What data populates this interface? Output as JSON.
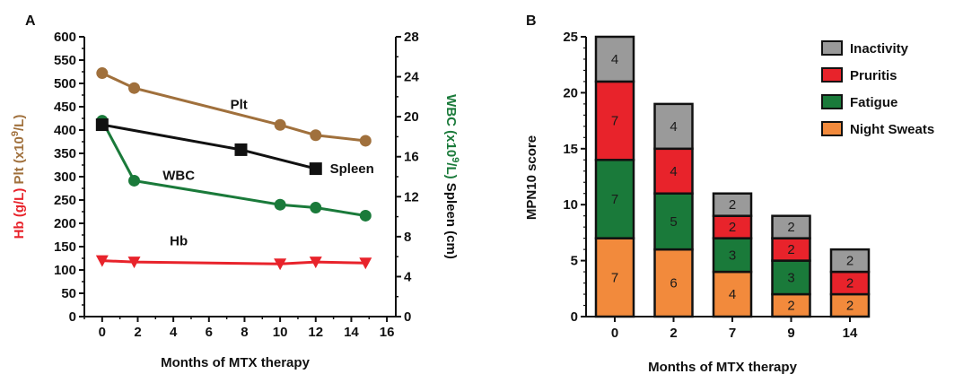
{
  "chart_data": [
    {
      "panel": "A",
      "type": "line",
      "xlabel": "Months of MTX therapy",
      "xlim": [
        -1,
        16.5
      ],
      "xticks": [
        0,
        2,
        4,
        6,
        8,
        10,
        12,
        14,
        16
      ],
      "y_left": {
        "label_parts": [
          "Hb (g/L)",
          " Plt (x10",
          "9",
          "/L)"
        ],
        "label_colors": [
          "#e8232b",
          "#a0703c",
          "#a0703c",
          "#a0703c"
        ],
        "lim": [
          0,
          600
        ],
        "ticks": [
          0,
          50,
          100,
          150,
          200,
          250,
          300,
          350,
          400,
          450,
          500,
          550,
          600
        ]
      },
      "y_right": {
        "label_parts": [
          "Spleen (cm)",
          " WBC (x10",
          "9",
          "/L)"
        ],
        "label_colors": [
          "#111111",
          "#1a7a3a",
          "#1a7a3a",
          "#1a7a3a"
        ],
        "lim": [
          0,
          28
        ],
        "ticks": [
          0,
          4,
          8,
          12,
          16,
          20,
          24,
          28
        ]
      },
      "series": [
        {
          "name": "Plt",
          "axis": "left",
          "color": "#a0703c",
          "marker": "circle",
          "x": [
            0,
            1.8,
            10,
            12,
            14.8
          ],
          "y": [
            522,
            490,
            411,
            389,
            377
          ]
        },
        {
          "name": "WBC",
          "axis": "right",
          "color": "#1a7a3a",
          "marker": "circle",
          "x": [
            0,
            1.8,
            10,
            12,
            14.8
          ],
          "y": [
            19.6,
            13.6,
            11.2,
            10.9,
            10.1
          ]
        },
        {
          "name": "Spleen",
          "axis": "right",
          "color": "#111111",
          "marker": "square",
          "x": [
            0,
            7.8,
            12
          ],
          "y": [
            19.2,
            16.7,
            14.8
          ]
        },
        {
          "name": "Hb",
          "axis": "right_hidden",
          "color": "#e8232b",
          "marker": "triangle-down",
          "x": [
            0,
            1.8,
            10,
            12,
            14.8
          ],
          "y": [
            120,
            117,
            113,
            117,
            115
          ],
          "axis_note": "left"
        }
      ],
      "annotations": [
        {
          "text": "Plt",
          "color": "#a0703c",
          "x": 7.2,
          "y": 445
        },
        {
          "text": "WBC",
          "color": "#1a7a3a",
          "x": 3.4,
          "y": 293
        },
        {
          "text": "Spleen",
          "color": "#111111",
          "x": 12.8,
          "y": 308
        },
        {
          "text": "Hb",
          "color": "#e8232b",
          "x": 3.8,
          "y": 153
        }
      ]
    },
    {
      "panel": "B",
      "type": "bar",
      "stacked": true,
      "xlabel": "Months of MTX therapy",
      "ylabel": "MPN10 score",
      "ylim": [
        0,
        25
      ],
      "yticks": [
        0,
        5,
        10,
        15,
        20,
        25
      ],
      "categories": [
        "0",
        "2",
        "7",
        "9",
        "14"
      ],
      "series": [
        {
          "name": "Night Sweats",
          "color": "#f28a3c",
          "values": [
            7,
            6,
            4,
            2,
            2
          ]
        },
        {
          "name": "Fatigue",
          "color": "#1a7a3a",
          "values": [
            7,
            5,
            3,
            3,
            0
          ]
        },
        {
          "name": "Pruritis",
          "color": "#e8232b",
          "values": [
            7,
            4,
            2,
            2,
            2
          ]
        },
        {
          "name": "Inactivity",
          "color": "#9a9a9a",
          "values": [
            4,
            4,
            2,
            2,
            2
          ]
        }
      ],
      "legend": [
        "Inactivity",
        "Pruritis",
        "Fatigue",
        "Night Sweats"
      ],
      "legend_position": "top-right"
    }
  ]
}
